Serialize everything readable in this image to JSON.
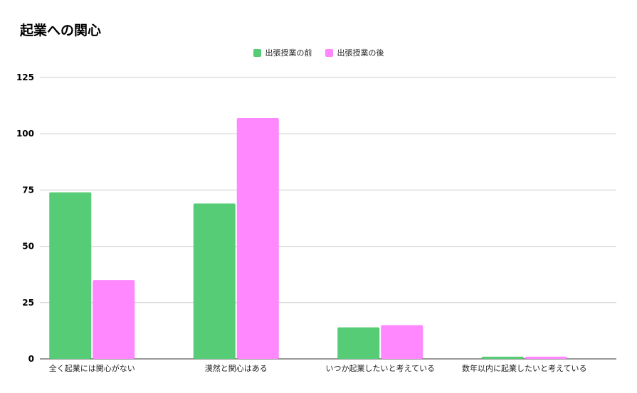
{
  "chart_data": {
    "type": "bar",
    "title": "起業への関心",
    "categories": [
      "全く起業には関心がない",
      "漠然と関心はある",
      "いつか起業したいと考えている",
      "数年以内に起業したいと考えている"
    ],
    "series": [
      {
        "name": "出張授業の前",
        "values": [
          74,
          69,
          14,
          1
        ],
        "color": "#57cc76"
      },
      {
        "name": "出張授業の後",
        "values": [
          35,
          107,
          15,
          1
        ],
        "color": "#ff88ff"
      }
    ],
    "ylim": [
      0,
      125
    ],
    "yticks": [
      0,
      25,
      50,
      75,
      100,
      125
    ],
    "grid": true,
    "legend_position": "top-center"
  }
}
